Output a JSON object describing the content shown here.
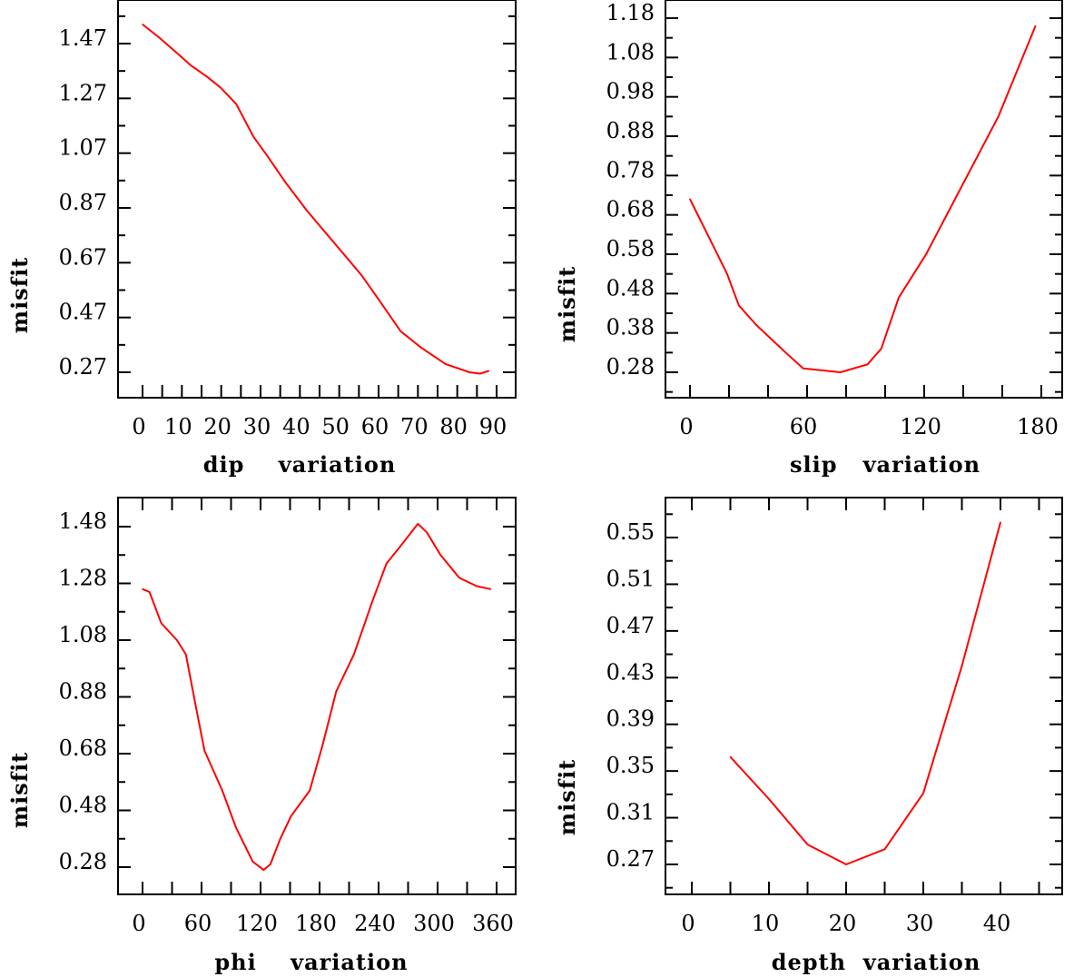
{
  "chart_data": [
    {
      "type": "line",
      "title": "",
      "xlabel": "dip    variation",
      "ylabel": "misfit",
      "xlim": [
        -5,
        95
      ],
      "ylim": [
        0.18,
        1.6
      ],
      "xticks": [
        0,
        10,
        20,
        30,
        40,
        50,
        60,
        70,
        80,
        90
      ],
      "yticks": [
        0.27,
        0.47,
        0.67,
        0.87,
        1.07,
        1.27,
        1.47
      ],
      "ytick_labels": [
        "0.27",
        "0.47",
        "0.67",
        "0.87",
        "1.07",
        "1.27",
        "1.47"
      ],
      "minor_x_step": 5,
      "minor_y_step": 0.1,
      "color": "#ff0000",
      "x": [
        0,
        4.4,
        9.2,
        12.3,
        16.3,
        19.8,
        23.8,
        28.2,
        31.7,
        36.5,
        41.8,
        47.1,
        52.4,
        55.9,
        60.3,
        65.6,
        70.8,
        77,
        83.1,
        85.8,
        88
      ],
      "y": [
        1.54,
        1.49,
        1.43,
        1.39,
        1.35,
        1.31,
        1.25,
        1.13,
        1.06,
        0.96,
        0.86,
        0.77,
        0.68,
        0.62,
        0.53,
        0.42,
        0.36,
        0.3,
        0.27,
        0.265,
        0.275
      ]
    },
    {
      "type": "line",
      "title": "",
      "xlabel": "slip   variation",
      "ylabel": "misfit",
      "xlim": [
        -12,
        192
      ],
      "ylim": [
        0.22,
        1.19
      ],
      "xticks": [
        0,
        60,
        120,
        180
      ],
      "yticks": [
        0.28,
        0.38,
        0.48,
        0.58,
        0.68,
        0.78,
        0.88,
        0.98,
        1.08,
        1.18
      ],
      "ytick_labels": [
        "0.28",
        "0.38",
        "0.48",
        "0.58",
        "0.68",
        "0.78",
        "0.88",
        "0.98",
        "1.08",
        "1.18"
      ],
      "minor_x_step": 20,
      "minor_y_step": 0.05,
      "color": "#ff0000",
      "x": [
        0,
        2,
        9,
        19,
        25,
        34,
        49,
        58,
        77,
        91,
        98,
        107,
        121,
        140,
        158,
        177
      ],
      "y": [
        0.72,
        0.7,
        0.63,
        0.53,
        0.45,
        0.4,
        0.33,
        0.29,
        0.28,
        0.3,
        0.34,
        0.47,
        0.58,
        0.76,
        0.93,
        1.16
      ]
    },
    {
      "type": "line",
      "title": "",
      "xlabel": "phi    variation",
      "ylabel": "misfit",
      "xlim": [
        -25,
        380
      ],
      "ylim": [
        0.19,
        1.6
      ],
      "xticks": [
        0,
        60,
        120,
        180,
        240,
        300,
        360
      ],
      "yticks": [
        0.28,
        0.48,
        0.68,
        0.88,
        1.08,
        1.28,
        1.48
      ],
      "ytick_labels": [
        "0.28",
        "0.48",
        "0.68",
        "0.88",
        "1.08",
        "1.28",
        "1.48"
      ],
      "minor_x_step": 30,
      "minor_y_step": 0.1,
      "color": "#ff0000",
      "x": [
        0,
        7,
        19,
        35,
        44,
        54,
        63,
        81,
        95,
        112,
        123,
        130,
        140,
        151,
        170,
        183,
        197,
        215,
        234,
        248,
        262,
        280,
        289,
        303,
        322,
        340,
        354
      ],
      "y": [
        1.26,
        1.25,
        1.14,
        1.08,
        1.03,
        0.85,
        0.69,
        0.55,
        0.42,
        0.3,
        0.27,
        0.29,
        0.38,
        0.46,
        0.55,
        0.71,
        0.9,
        1.03,
        1.22,
        1.35,
        1.41,
        1.49,
        1.46,
        1.38,
        1.3,
        1.27,
        1.26
      ]
    },
    {
      "type": "line",
      "title": "",
      "xlabel": "depth  variation",
      "ylabel": "misfit",
      "xlim": [
        -3,
        48
      ],
      "ylim": [
        0.245,
        0.585
      ],
      "xticks": [
        0,
        10,
        20,
        30,
        40
      ],
      "yticks": [
        0.27,
        0.31,
        0.35,
        0.39,
        0.43,
        0.47,
        0.51,
        0.55
      ],
      "ytick_labels": [
        "0.27",
        "0.31",
        "0.35",
        "0.39",
        "0.43",
        "0.47",
        "0.51",
        "0.55"
      ],
      "minor_x_step": 5,
      "minor_y_step": 0.02,
      "color": "#ff0000",
      "x": [
        5,
        10,
        15,
        20,
        25,
        30,
        35,
        40
      ],
      "y": [
        0.362,
        0.326,
        0.287,
        0.27,
        0.283,
        0.331,
        0.44,
        0.563
      ]
    }
  ]
}
